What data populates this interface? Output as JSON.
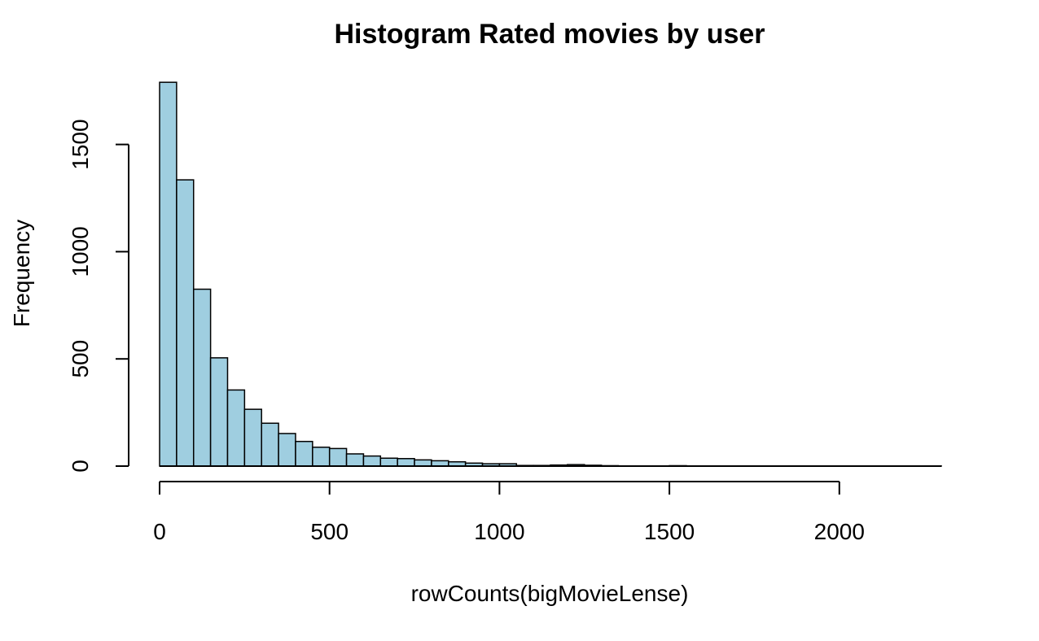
{
  "chart_data": {
    "type": "bar",
    "title": "Histogram Rated movies by user",
    "xlabel": "rowCounts(bigMovieLense)",
    "ylabel": "Frequency",
    "bar_color": "#9FCEE0",
    "bin_width": 50,
    "bin_start": 0,
    "xlim": [
      0,
      2300
    ],
    "ylim": [
      0,
      1800
    ],
    "x_ticks": [
      0,
      500,
      1000,
      1500,
      2000
    ],
    "y_ticks": [
      0,
      500,
      1000,
      1500
    ],
    "values": [
      1790,
      1335,
      825,
      505,
      355,
      265,
      200,
      152,
      115,
      88,
      82,
      57,
      47,
      37,
      35,
      29,
      25,
      20,
      14,
      11,
      11,
      3,
      3,
      5,
      7,
      4,
      2,
      1,
      1,
      1,
      2,
      1,
      1,
      0,
      1,
      0,
      0,
      1,
      0,
      0,
      0,
      0,
      0,
      0,
      0,
      1
    ],
    "grid": false
  }
}
